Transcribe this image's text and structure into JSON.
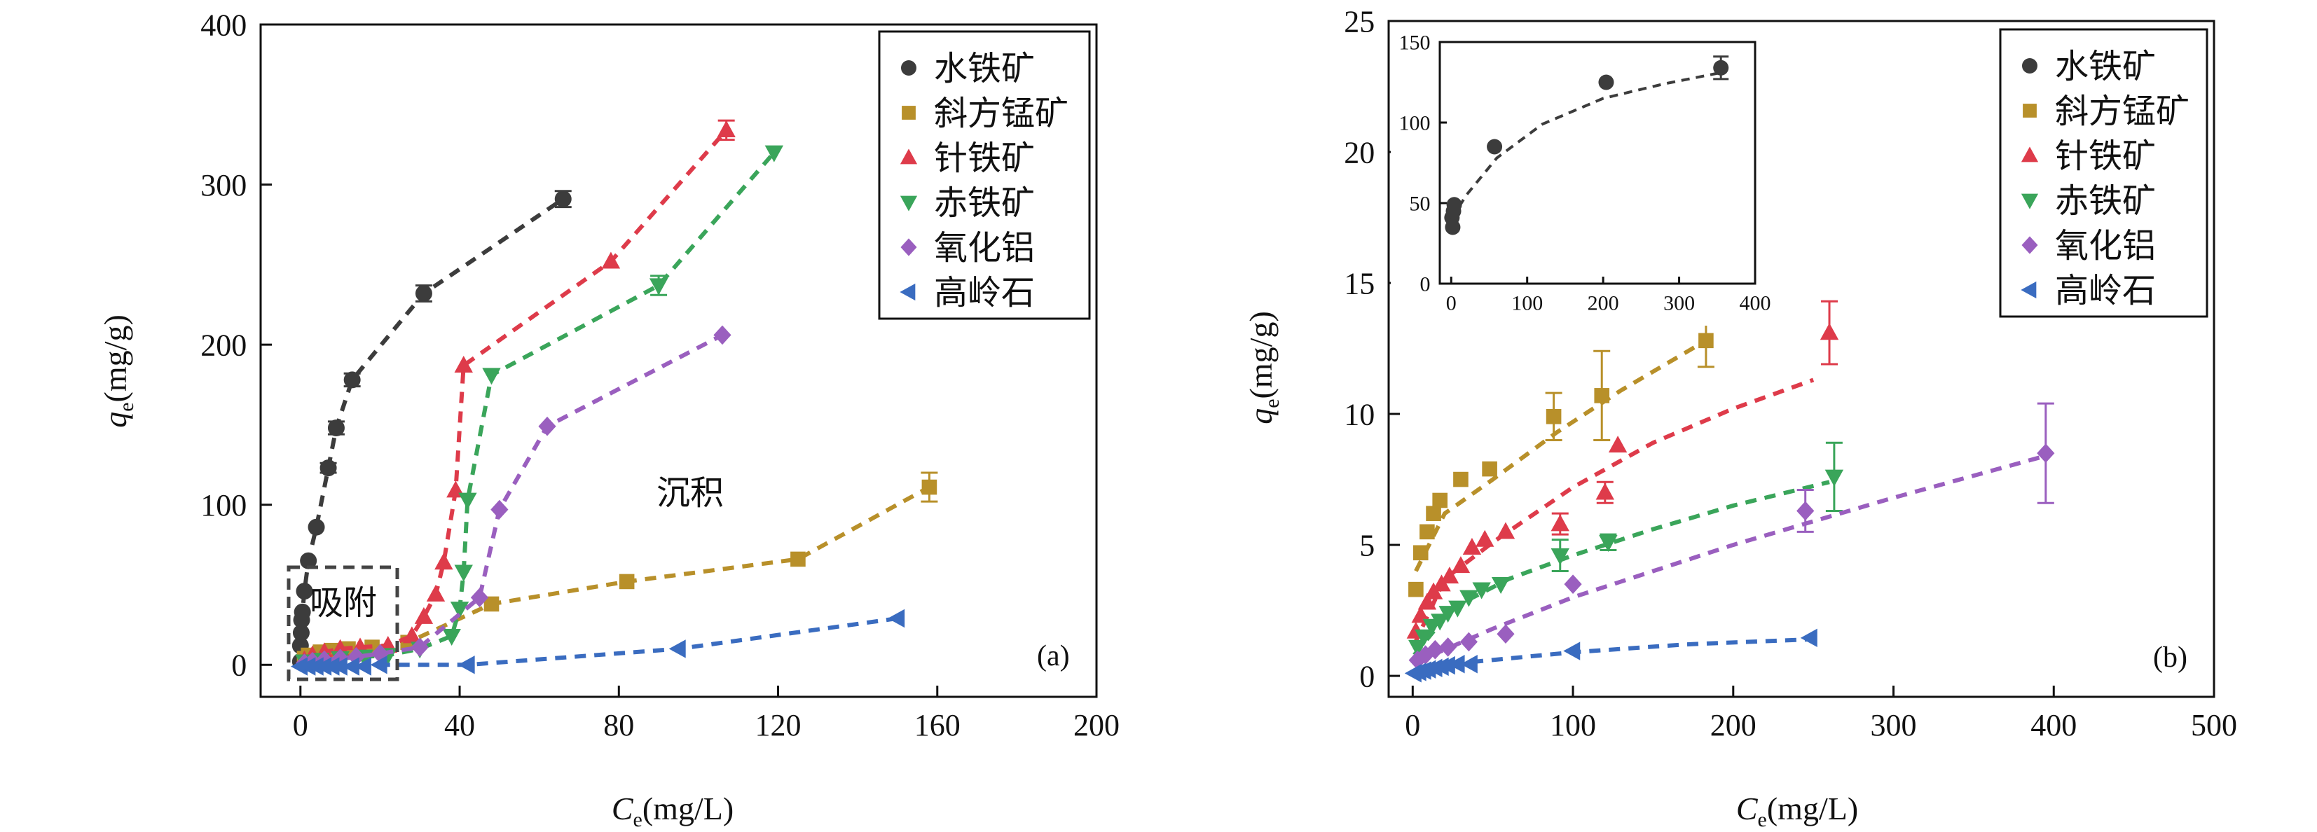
{
  "panels": [
    {
      "id": "a",
      "panel_label": "(a)",
      "xlabel_main": "C",
      "xlabel_sub": "e",
      "xlabel_unit": "(mg/L)",
      "ylabel_main": "q",
      "ylabel_sub": "e",
      "ylabel_unit": "(mg/g)",
      "annotations": {
        "box_label": "吸附",
        "region_label": "沉积"
      }
    },
    {
      "id": "b",
      "panel_label": "(b)",
      "xlabel_main": "C",
      "xlabel_sub": "e",
      "xlabel_unit": "(mg/L)",
      "ylabel_main": "q",
      "ylabel_sub": "e",
      "ylabel_unit": "(mg/g)"
    }
  ],
  "legend": [
    {
      "name": "水铁矿",
      "color": "#3c3c3c",
      "marker": "circle"
    },
    {
      "name": "斜方锰矿",
      "color": "#b8902a",
      "marker": "square"
    },
    {
      "name": "针铁矿",
      "color": "#de3b4a",
      "marker": "triangle-up"
    },
    {
      "name": "赤铁矿",
      "color": "#3aa55a",
      "marker": "triangle-down"
    },
    {
      "name": "氧化铝",
      "color": "#9a5fbf",
      "marker": "diamond"
    },
    {
      "name": "高岭石",
      "color": "#3a6cc0",
      "marker": "triangle-left"
    }
  ],
  "chart_data": [
    {
      "type": "scatter",
      "panel": "a",
      "xlim": [
        -10,
        200
      ],
      "ylim": [
        -20,
        400
      ],
      "xticks": [
        0,
        40,
        80,
        120,
        160,
        200
      ],
      "yticks": [
        0,
        100,
        200,
        300,
        400
      ],
      "legend_position": "top-right",
      "grid": false,
      "series": [
        {
          "name": "水铁矿",
          "line": true,
          "x": [
            0,
            0,
            0.2,
            0.3,
            0.5,
            1,
            2,
            4,
            7,
            9,
            13,
            31,
            66
          ],
          "y": [
            2,
            12,
            20,
            28,
            33,
            46,
            65,
            86,
            123,
            148,
            178,
            232,
            291
          ],
          "err": [
            0,
            0,
            0,
            0,
            0,
            0,
            0,
            0,
            3,
            4,
            4,
            5,
            5
          ]
        },
        {
          "name": "斜方锰矿",
          "line": true,
          "x": [
            1,
            2,
            5,
            8,
            12,
            18,
            27,
            48,
            82,
            125,
            158
          ],
          "y": [
            4,
            6,
            8,
            9,
            10,
            11,
            14,
            38,
            52,
            66,
            111
          ],
          "err": [
            0,
            0,
            0,
            0,
            0,
            0,
            0,
            0,
            0,
            0,
            9
          ]
        },
        {
          "name": "针铁矿",
          "line": true,
          "x": [
            1,
            3,
            6,
            10,
            15,
            22,
            28,
            31,
            34,
            36,
            39,
            41,
            78,
            107
          ],
          "y": [
            3,
            6,
            8,
            10,
            11,
            12,
            18,
            30,
            44,
            64,
            109,
            187,
            252,
            334
          ],
          "err": [
            0,
            0,
            0,
            0,
            0,
            0,
            0,
            0,
            0,
            0,
            0,
            0,
            0,
            6
          ]
        },
        {
          "name": "赤铁矿",
          "line": true,
          "x": [
            1,
            5,
            10,
            16,
            22,
            30,
            38,
            40,
            41,
            42,
            48,
            90,
            119
          ],
          "y": [
            2,
            3,
            4,
            5,
            6,
            10,
            18,
            35,
            58,
            103,
            181,
            237,
            320
          ],
          "err": [
            0,
            0,
            0,
            0,
            0,
            0,
            0,
            0,
            0,
            0,
            0,
            6,
            0
          ]
        },
        {
          "name": "氧化铝",
          "line": true,
          "x": [
            1,
            3,
            6,
            10,
            14,
            20,
            30,
            45,
            50,
            62,
            106
          ],
          "y": [
            1,
            2,
            3,
            4,
            5,
            7,
            11,
            42,
            97,
            149,
            206
          ],
          "err": [
            0,
            0,
            0,
            0,
            0,
            0,
            0,
            0,
            0,
            0,
            0
          ]
        },
        {
          "name": "高岭石",
          "line": true,
          "x": [
            0,
            2,
            4,
            6,
            8,
            10,
            13,
            16,
            20,
            42,
            95,
            150
          ],
          "y": [
            -1,
            -1,
            -1,
            -1,
            -1,
            -1,
            -1,
            -1,
            0,
            0,
            10,
            29
          ],
          "err": [
            0,
            0,
            0,
            0,
            0,
            0,
            0,
            0,
            0,
            0,
            0,
            0
          ]
        }
      ]
    },
    {
      "type": "scatter",
      "panel": "b",
      "xlim": [
        -15,
        500
      ],
      "ylim": [
        -0.8,
        25
      ],
      "xticks": [
        0,
        100,
        200,
        300,
        400,
        500
      ],
      "yticks": [
        0,
        5,
        10,
        15,
        20,
        25
      ],
      "legend_position": "top-right",
      "grid": false,
      "series": [
        {
          "name": "斜方锰矿",
          "x": [
            2,
            5,
            9,
            13,
            17,
            30,
            48,
            88,
            118,
            183
          ],
          "y": [
            3.3,
            4.7,
            5.5,
            6.2,
            6.7,
            7.5,
            7.9,
            9.9,
            10.7,
            12.8
          ],
          "err": [
            0,
            0,
            0,
            0,
            0,
            0,
            0,
            0.9,
            1.7,
            1.0
          ],
          "fit": [
            [
              2,
              4.0
            ],
            [
              20,
              6.2
            ],
            [
              50,
              7.5
            ],
            [
              90,
              9.3
            ],
            [
              130,
              10.9
            ],
            [
              183,
              12.8
            ]
          ]
        },
        {
          "name": "针铁矿",
          "x": [
            2,
            5,
            9,
            13,
            18,
            23,
            30,
            37,
            45,
            58,
            92,
            120,
            128,
            260
          ],
          "y": [
            1.7,
            2.3,
            2.8,
            3.2,
            3.5,
            3.8,
            4.2,
            4.9,
            5.2,
            5.5,
            5.8,
            7.0,
            8.8,
            13.1
          ],
          "err": [
            0,
            0,
            0,
            0,
            0,
            0,
            0,
            0,
            0,
            0,
            0.4,
            0.4,
            0,
            1.2
          ],
          "fit": [
            [
              1,
              1.2
            ],
            [
              20,
              3.7
            ],
            [
              50,
              5.1
            ],
            [
              100,
              7.2
            ],
            [
              150,
              8.9
            ],
            [
              200,
              10.2
            ],
            [
              250,
              11.3
            ]
          ]
        },
        {
          "name": "赤铁矿",
          "x": [
            3,
            7,
            12,
            17,
            22,
            28,
            35,
            43,
            55,
            92,
            122,
            263
          ],
          "y": [
            1.1,
            1.5,
            1.9,
            2.1,
            2.4,
            2.6,
            3.0,
            3.3,
            3.5,
            4.6,
            5.1,
            7.6
          ],
          "err": [
            0,
            0,
            0,
            0,
            0,
            0,
            0,
            0,
            0,
            0.6,
            0.3,
            1.3
          ],
          "fit": [
            [
              1,
              0.8
            ],
            [
              25,
              2.6
            ],
            [
              60,
              3.7
            ],
            [
              100,
              4.6
            ],
            [
              150,
              5.6
            ],
            [
              200,
              6.5
            ],
            [
              260,
              7.4
            ]
          ]
        },
        {
          "name": "氧化铝",
          "x": [
            3,
            8,
            14,
            22,
            35,
            58,
            100,
            245,
            395
          ],
          "y": [
            0.6,
            0.8,
            1.0,
            1.1,
            1.3,
            1.6,
            3.5,
            6.3,
            8.5
          ],
          "err": [
            0,
            0,
            0,
            0,
            0,
            0,
            0,
            0.8,
            1.9
          ],
          "fit": [
            [
              1,
              0.5
            ],
            [
              50,
              1.8
            ],
            [
              100,
              3.0
            ],
            [
              200,
              5.0
            ],
            [
              300,
              6.8
            ],
            [
              395,
              8.4
            ]
          ]
        },
        {
          "name": "高岭石",
          "x": [
            1,
            4,
            7,
            10,
            14,
            18,
            22,
            28,
            36,
            100,
            248
          ],
          "y": [
            0.1,
            0.15,
            0.2,
            0.25,
            0.3,
            0.35,
            0.4,
            0.45,
            0.45,
            0.95,
            1.45
          ],
          "err": [
            0,
            0,
            0,
            0,
            0,
            0,
            0,
            0,
            0,
            0,
            0
          ],
          "fit": [
            [
              1,
              0.1
            ],
            [
              40,
              0.55
            ],
            [
              100,
              0.9
            ],
            [
              170,
              1.2
            ],
            [
              250,
              1.4
            ]
          ]
        }
      ],
      "inset": {
        "xlim": [
          -15,
          400
        ],
        "ylim": [
          0,
          150
        ],
        "xticks": [
          0,
          100,
          200,
          300,
          400
        ],
        "yticks": [
          0,
          50,
          100,
          150
        ],
        "series": [
          {
            "name": "水铁矿",
            "x": [
              1,
              2,
              3,
              4,
              57,
              204,
              355
            ],
            "y": [
              41,
              35,
              45,
              49,
              85,
              125,
              134
            ],
            "err": [
              0,
              0,
              0,
              0,
              0,
              0,
              7
            ],
            "fit": [
              [
                0,
                40
              ],
              [
                20,
                55
              ],
              [
                60,
                78
              ],
              [
                120,
                99
              ],
              [
                200,
                115
              ],
              [
                280,
                124
              ],
              [
                355,
                131
              ]
            ]
          }
        ]
      }
    }
  ]
}
